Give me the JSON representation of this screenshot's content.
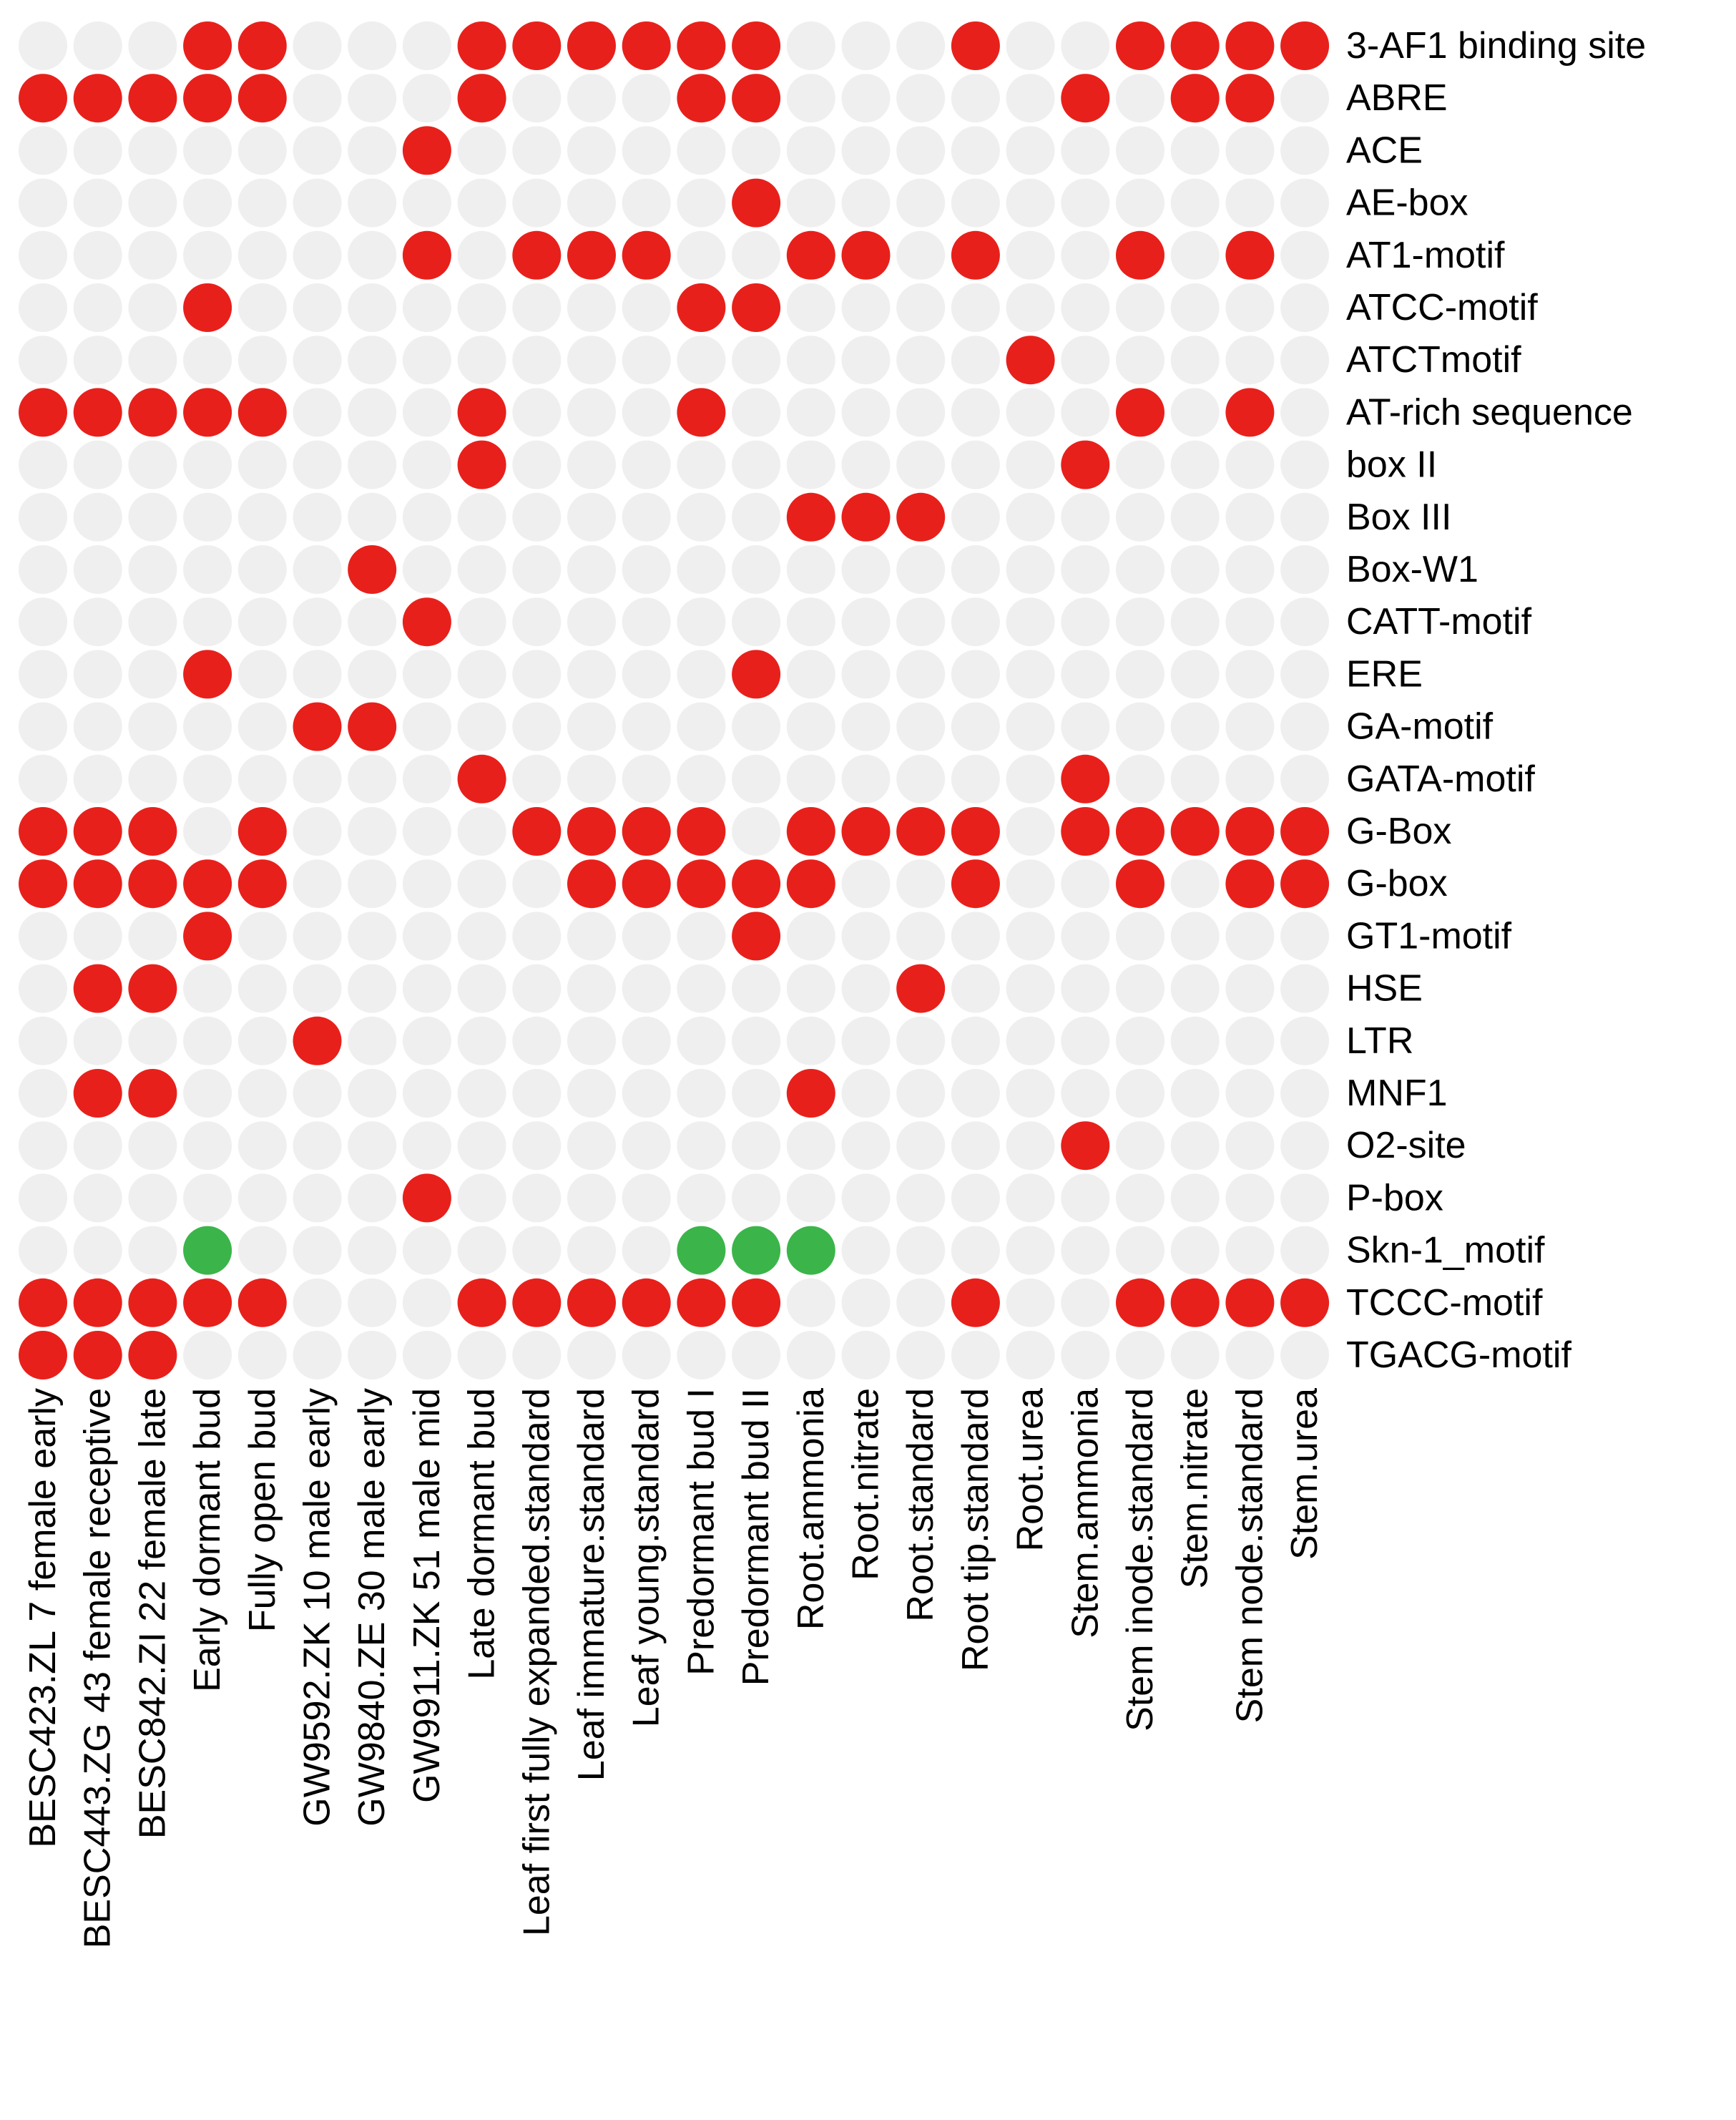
{
  "chart_data": {
    "type": "heatmap",
    "title": "",
    "colors": {
      "absent": "#efefef",
      "present": "#e8201b",
      "green": "#3bb54a"
    },
    "legend": {
      "0": "absent",
      "1": "present",
      "2": "green"
    },
    "columns": [
      "BESC423.ZL 7 female early",
      "BESC443.ZG 43 female receptive",
      "BESC842.ZI 22 female late",
      "Early dormant bud",
      "Fully open bud",
      "GW9592.ZK 10 male early",
      "GW9840.ZE 30 male early",
      "GW9911.ZK 51 male mid",
      "Late dormant bud",
      "Leaf first fully expanded.standard",
      "Leaf immature.standard",
      "Leaf young.standard",
      "Predormant bud I",
      "Predormant bud II",
      "Root.ammonia",
      "Root.nitrate",
      "Root.standard",
      "Root tip.standard",
      "Root.urea",
      "Stem.ammonia",
      "Stem inode.standard",
      "Stem.nitrate",
      "Stem node.standard",
      "Stem.urea"
    ],
    "rows": [
      {
        "name": "3-AF1 binding site",
        "values": [
          0,
          0,
          0,
          1,
          1,
          0,
          0,
          0,
          1,
          1,
          1,
          1,
          1,
          1,
          0,
          0,
          0,
          1,
          0,
          0,
          1,
          1,
          1,
          1
        ]
      },
      {
        "name": "ABRE",
        "values": [
          1,
          1,
          1,
          1,
          1,
          0,
          0,
          0,
          1,
          0,
          0,
          0,
          1,
          1,
          0,
          0,
          0,
          0,
          0,
          1,
          0,
          1,
          1,
          0
        ]
      },
      {
        "name": "ACE",
        "values": [
          0,
          0,
          0,
          0,
          0,
          0,
          0,
          1,
          0,
          0,
          0,
          0,
          0,
          0,
          0,
          0,
          0,
          0,
          0,
          0,
          0,
          0,
          0,
          0
        ]
      },
      {
        "name": "AE-box",
        "values": [
          0,
          0,
          0,
          0,
          0,
          0,
          0,
          0,
          0,
          0,
          0,
          0,
          0,
          1,
          0,
          0,
          0,
          0,
          0,
          0,
          0,
          0,
          0,
          0
        ]
      },
      {
        "name": "AT1-motif",
        "values": [
          0,
          0,
          0,
          0,
          0,
          0,
          0,
          1,
          0,
          1,
          1,
          1,
          0,
          0,
          1,
          1,
          0,
          1,
          0,
          0,
          1,
          0,
          1,
          0
        ]
      },
      {
        "name": "ATCC-motif",
        "values": [
          0,
          0,
          0,
          1,
          0,
          0,
          0,
          0,
          0,
          0,
          0,
          0,
          1,
          1,
          0,
          0,
          0,
          0,
          0,
          0,
          0,
          0,
          0,
          0
        ]
      },
      {
        "name": "ATCTmotif",
        "values": [
          0,
          0,
          0,
          0,
          0,
          0,
          0,
          0,
          0,
          0,
          0,
          0,
          0,
          0,
          0,
          0,
          0,
          0,
          1,
          0,
          0,
          0,
          0,
          0
        ]
      },
      {
        "name": "AT-rich sequence",
        "values": [
          1,
          1,
          1,
          1,
          1,
          0,
          0,
          0,
          1,
          0,
          0,
          0,
          1,
          0,
          0,
          0,
          0,
          0,
          0,
          0,
          1,
          0,
          1,
          0
        ]
      },
      {
        "name": "box II",
        "values": [
          0,
          0,
          0,
          0,
          0,
          0,
          0,
          0,
          1,
          0,
          0,
          0,
          0,
          0,
          0,
          0,
          0,
          0,
          0,
          1,
          0,
          0,
          0,
          0
        ]
      },
      {
        "name": "Box III",
        "values": [
          0,
          0,
          0,
          0,
          0,
          0,
          0,
          0,
          0,
          0,
          0,
          0,
          0,
          0,
          1,
          1,
          1,
          0,
          0,
          0,
          0,
          0,
          0,
          0
        ]
      },
      {
        "name": "Box-W1",
        "values": [
          0,
          0,
          0,
          0,
          0,
          0,
          1,
          0,
          0,
          0,
          0,
          0,
          0,
          0,
          0,
          0,
          0,
          0,
          0,
          0,
          0,
          0,
          0,
          0
        ]
      },
      {
        "name": "CATT-motif",
        "values": [
          0,
          0,
          0,
          0,
          0,
          0,
          0,
          1,
          0,
          0,
          0,
          0,
          0,
          0,
          0,
          0,
          0,
          0,
          0,
          0,
          0,
          0,
          0,
          0
        ]
      },
      {
        "name": "ERE",
        "values": [
          0,
          0,
          0,
          1,
          0,
          0,
          0,
          0,
          0,
          0,
          0,
          0,
          0,
          1,
          0,
          0,
          0,
          0,
          0,
          0,
          0,
          0,
          0,
          0
        ]
      },
      {
        "name": "GA-motif",
        "values": [
          0,
          0,
          0,
          0,
          0,
          1,
          1,
          0,
          0,
          0,
          0,
          0,
          0,
          0,
          0,
          0,
          0,
          0,
          0,
          0,
          0,
          0,
          0,
          0
        ]
      },
      {
        "name": "GATA-motif",
        "values": [
          0,
          0,
          0,
          0,
          0,
          0,
          0,
          0,
          1,
          0,
          0,
          0,
          0,
          0,
          0,
          0,
          0,
          0,
          0,
          1,
          0,
          0,
          0,
          0
        ]
      },
      {
        "name": "G-Box",
        "values": [
          1,
          1,
          1,
          0,
          1,
          0,
          0,
          0,
          0,
          1,
          1,
          1,
          1,
          0,
          1,
          1,
          1,
          1,
          0,
          1,
          1,
          1,
          1,
          1
        ]
      },
      {
        "name": "G-box",
        "values": [
          1,
          1,
          1,
          1,
          1,
          0,
          0,
          0,
          0,
          0,
          1,
          1,
          1,
          1,
          1,
          0,
          0,
          1,
          0,
          0,
          1,
          0,
          1,
          1
        ]
      },
      {
        "name": "GT1-motif",
        "values": [
          0,
          0,
          0,
          1,
          0,
          0,
          0,
          0,
          0,
          0,
          0,
          0,
          0,
          1,
          0,
          0,
          0,
          0,
          0,
          0,
          0,
          0,
          0,
          0
        ]
      },
      {
        "name": "HSE",
        "values": [
          0,
          1,
          1,
          0,
          0,
          0,
          0,
          0,
          0,
          0,
          0,
          0,
          0,
          0,
          0,
          0,
          1,
          0,
          0,
          0,
          0,
          0,
          0,
          0
        ]
      },
      {
        "name": "LTR",
        "values": [
          0,
          0,
          0,
          0,
          0,
          1,
          0,
          0,
          0,
          0,
          0,
          0,
          0,
          0,
          0,
          0,
          0,
          0,
          0,
          0,
          0,
          0,
          0,
          0
        ]
      },
      {
        "name": "MNF1",
        "values": [
          0,
          1,
          1,
          0,
          0,
          0,
          0,
          0,
          0,
          0,
          0,
          0,
          0,
          0,
          1,
          0,
          0,
          0,
          0,
          0,
          0,
          0,
          0,
          0
        ]
      },
      {
        "name": "O2-site",
        "values": [
          0,
          0,
          0,
          0,
          0,
          0,
          0,
          0,
          0,
          0,
          0,
          0,
          0,
          0,
          0,
          0,
          0,
          0,
          0,
          1,
          0,
          0,
          0,
          0
        ]
      },
      {
        "name": "P-box",
        "values": [
          0,
          0,
          0,
          0,
          0,
          0,
          0,
          1,
          0,
          0,
          0,
          0,
          0,
          0,
          0,
          0,
          0,
          0,
          0,
          0,
          0,
          0,
          0,
          0
        ]
      },
      {
        "name": "Skn-1_motif",
        "values": [
          0,
          0,
          0,
          2,
          0,
          0,
          0,
          0,
          0,
          0,
          0,
          0,
          2,
          2,
          2,
          0,
          0,
          0,
          0,
          0,
          0,
          0,
          0,
          0
        ]
      },
      {
        "name": "TCCC-motif",
        "values": [
          1,
          1,
          1,
          1,
          1,
          0,
          0,
          0,
          1,
          1,
          1,
          1,
          1,
          1,
          0,
          0,
          0,
          1,
          0,
          0,
          1,
          1,
          1,
          1
        ]
      },
      {
        "name": "TGACG-motif",
        "values": [
          1,
          1,
          1,
          0,
          0,
          0,
          0,
          0,
          0,
          0,
          0,
          0,
          0,
          0,
          0,
          0,
          0,
          0,
          0,
          0,
          0,
          0,
          0,
          0
        ]
      }
    ]
  }
}
